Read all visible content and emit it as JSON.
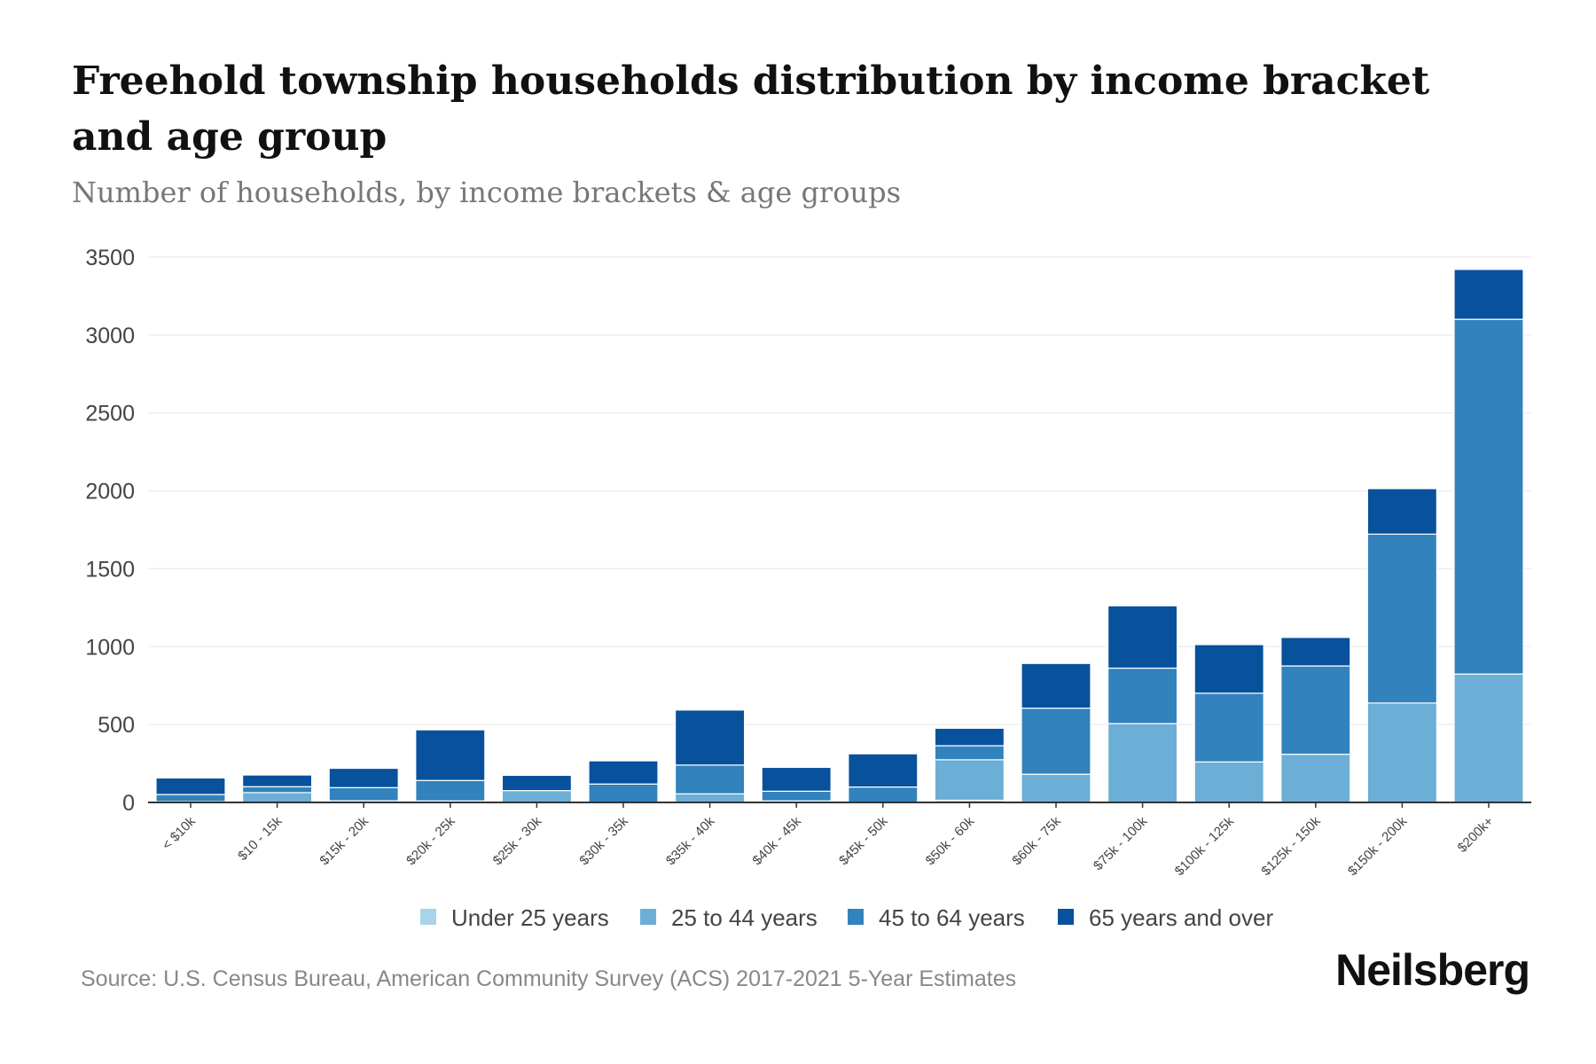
{
  "chart_data": {
    "type": "bar",
    "stacked": true,
    "title": "Freehold township households distribution by income bracket and age group",
    "subtitle": "Number of households, by income brackets & age groups",
    "xlabel": "",
    "ylabel": "",
    "ylim": [
      0,
      3500
    ],
    "yticks": [
      0,
      500,
      1000,
      1500,
      2000,
      2500,
      3000,
      3500
    ],
    "grid": true,
    "legend_position": "bottom",
    "categories": [
      "< $10k",
      "$10 - 15k",
      "$15k - 20k",
      "$20k - 25k",
      "$25k - 30k",
      "$30k - 35k",
      "$35k - 40k",
      "$40k - 45k",
      "$45k - 50k",
      "$50k - 60k",
      "$60k - 75k",
      "$75k - 100k",
      "$100k - 125k",
      "$125k - 150k",
      "$150k - 200k",
      "$200k+"
    ],
    "series": [
      {
        "name": "Under 25 years",
        "color": "#a9d3e8",
        "values": [
          0,
          0,
          0,
          0,
          0,
          0,
          0,
          0,
          0,
          14,
          0,
          0,
          0,
          0,
          0,
          0
        ]
      },
      {
        "name": "25 to 44 years",
        "color": "#6baed6",
        "values": [
          5,
          63,
          11,
          10,
          76,
          0,
          55,
          10,
          0,
          260,
          181,
          506,
          260,
          309,
          638,
          824
        ]
      },
      {
        "name": "45 to 64 years",
        "color": "#3182bd",
        "values": [
          46,
          38,
          84,
          131,
          0,
          118,
          185,
          62,
          99,
          90,
          424,
          356,
          441,
          567,
          1084,
          2277
        ]
      },
      {
        "name": "65 years and over",
        "color": "#08519c",
        "values": [
          106,
          75,
          124,
          325,
          98,
          149,
          353,
          153,
          213,
          112,
          287,
          400,
          312,
          183,
          292,
          320
        ]
      }
    ]
  },
  "source": "Source: U.S. Census Bureau, American Community Survey (ACS) 2017-2021 5-Year Estimates",
  "brand": "Neilsberg"
}
